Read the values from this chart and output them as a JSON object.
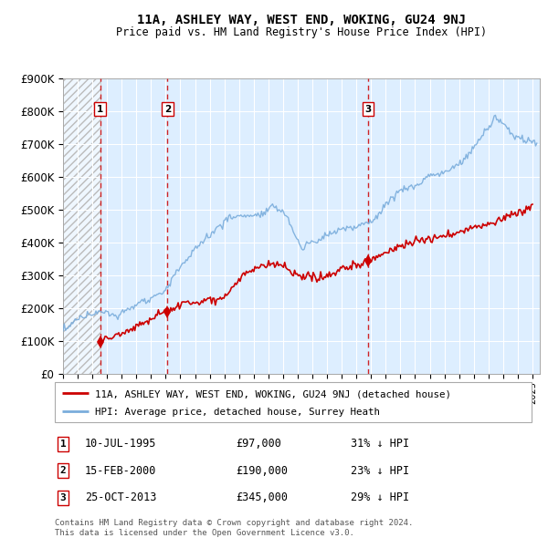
{
  "title": "11A, ASHLEY WAY, WEST END, WOKING, GU24 9NJ",
  "subtitle": "Price paid vs. HM Land Registry's House Price Index (HPI)",
  "legend_property": "11A, ASHLEY WAY, WEST END, WOKING, GU24 9NJ (detached house)",
  "legend_hpi": "HPI: Average price, detached house, Surrey Heath",
  "footer1": "Contains HM Land Registry data © Crown copyright and database right 2024.",
  "footer2": "This data is licensed under the Open Government Licence v3.0.",
  "sales": [
    {
      "label": "1",
      "date": "10-JUL-1995",
      "year": 1995.53,
      "price": 97000,
      "hpi_pct": "31% ↓ HPI"
    },
    {
      "label": "2",
      "date": "15-FEB-2000",
      "year": 2000.12,
      "price": 190000,
      "hpi_pct": "23% ↓ HPI"
    },
    {
      "label": "3",
      "date": "25-OCT-2013",
      "year": 2013.81,
      "price": 345000,
      "hpi_pct": "29% ↓ HPI"
    }
  ],
  "hpi_color": "#7aaddc",
  "sale_color": "#cc0000",
  "bg_color": "#ddeeff",
  "ylim": [
    0,
    900000
  ],
  "xlim_start": 1993.0,
  "xlim_end": 2025.5,
  "hatch_end": 1995.53
}
